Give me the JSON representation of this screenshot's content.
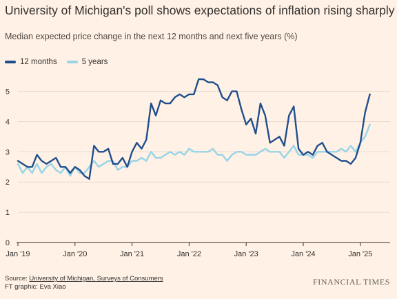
{
  "header": {
    "title": "University of Michigan's poll shows expectations of inflation rising sharply",
    "subtitle": "Median expected price change in the next 12 months and next five years (%)"
  },
  "footer": {
    "source_prefix": "Source: ",
    "source_link": "University of Michigan, Surveys of Consumers",
    "credit": "FT graphic: Eva Xiao",
    "brand": "FINANCIAL TIMES"
  },
  "colors": {
    "background": "#fff1e5",
    "series_12m": "#1f4e8c",
    "series_5y": "#96d4e8",
    "grid": "#e6d9ce",
    "axis": "#33302e"
  },
  "chart_data": {
    "type": "line",
    "x_unit": "month",
    "ylim": [
      0,
      5.4
    ],
    "yticks": [
      0,
      1,
      2,
      3,
      4,
      5
    ],
    "grid": true,
    "legend": "top-left",
    "xticks": [
      {
        "label": "Jan '19",
        "date": "2019-01"
      },
      {
        "label": "Jan '20",
        "date": "2020-01"
      },
      {
        "label": "Jan '21",
        "date": "2021-01"
      },
      {
        "label": "Jan '22",
        "date": "2022-01"
      },
      {
        "label": "Jan '23",
        "date": "2023-01"
      },
      {
        "label": "Jan '24",
        "date": "2024-01"
      },
      {
        "label": "Jan '25",
        "date": "2025-01"
      }
    ],
    "x_start": "2019-01",
    "x_end": "2025-03",
    "series": [
      {
        "name": "12 months",
        "color": "#1f4e8c",
        "values": [
          2.7,
          2.6,
          2.5,
          2.5,
          2.9,
          2.7,
          2.6,
          2.7,
          2.8,
          2.5,
          2.5,
          2.3,
          2.5,
          2.4,
          2.2,
          2.1,
          3.2,
          3.0,
          3.0,
          3.1,
          2.6,
          2.6,
          2.8,
          2.5,
          3.0,
          3.3,
          3.1,
          3.4,
          4.6,
          4.2,
          4.7,
          4.6,
          4.6,
          4.8,
          4.9,
          4.8,
          4.9,
          4.9,
          5.4,
          5.4,
          5.3,
          5.3,
          5.2,
          4.8,
          4.7,
          5.0,
          5.0,
          4.4,
          3.9,
          4.1,
          3.6,
          4.6,
          4.2,
          3.3,
          3.4,
          3.5,
          3.2,
          4.2,
          4.5,
          3.1,
          2.9,
          3.0,
          2.9,
          3.2,
          3.3,
          3.0,
          2.9,
          2.8,
          2.7,
          2.7,
          2.6,
          2.8,
          3.3,
          4.3,
          4.9
        ]
      },
      {
        "name": "5 years",
        "color": "#96d4e8",
        "values": [
          2.6,
          2.3,
          2.5,
          2.3,
          2.6,
          2.3,
          2.5,
          2.6,
          2.4,
          2.3,
          2.5,
          2.2,
          2.5,
          2.3,
          2.3,
          2.5,
          2.7,
          2.5,
          2.6,
          2.7,
          2.7,
          2.4,
          2.5,
          2.5,
          2.7,
          2.7,
          2.8,
          2.7,
          3.0,
          2.8,
          2.8,
          2.9,
          3.0,
          2.9,
          3.0,
          2.9,
          3.1,
          3.0,
          3.0,
          3.0,
          3.0,
          3.1,
          2.9,
          2.9,
          2.7,
          2.9,
          3.0,
          3.0,
          2.9,
          2.9,
          2.9,
          3.0,
          3.1,
          3.0,
          3.0,
          3.0,
          2.8,
          3.0,
          3.2,
          2.9,
          2.9,
          2.9,
          2.8,
          3.0,
          3.0,
          3.0,
          3.0,
          3.0,
          3.1,
          3.0,
          3.2,
          3.0,
          3.3,
          3.5,
          3.9
        ]
      }
    ]
  }
}
